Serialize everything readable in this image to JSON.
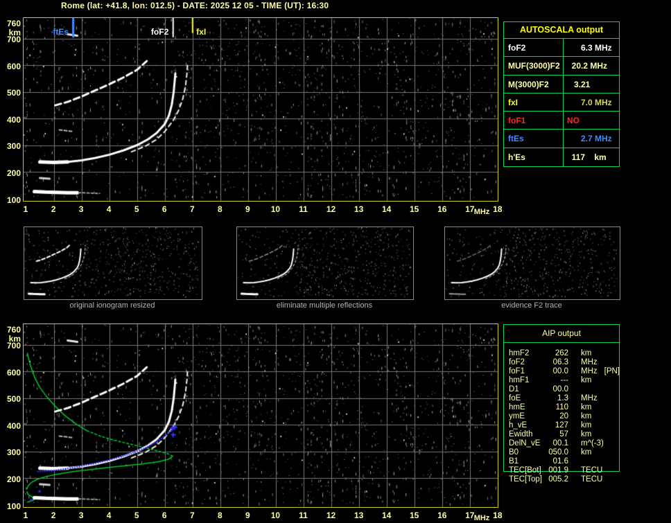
{
  "title": "Rome (lat: +41.8, lon: 012.5) - DATE: 2025 12 05 - TIME (UT): 16:30",
  "colors": {
    "background": "#000000",
    "title_text": "#ffffa8",
    "axis_text": "#ffffa4",
    "plot_border": "#cfcf00",
    "grid": "#787878",
    "table_border": "#00d957",
    "autoscala_header": "#ffff00",
    "red": "#ff2525",
    "blue": "#418cff",
    "fitted_blue": "#3333ff",
    "profile_green": "#00c830",
    "thumb_border": "#8a8a8a",
    "caption_gray": "#b4b4b4"
  },
  "autoscala": {
    "title": "AUTOSCALA output",
    "rows": [
      {
        "label": "foF2",
        "value": "      6.3 MHz",
        "labelColor": "#ffffff",
        "valueColor": "#ffffff"
      },
      {
        "label": "MUF(3000)F2",
        "value": "  20.2 MHz",
        "labelColor": "#ffffa4",
        "valueColor": "#ffffa4"
      },
      {
        "label": "M(3000)F2",
        "value": "   3.21",
        "labelColor": "#ffffa4",
        "valueColor": "#ffffa4"
      },
      {
        "label": "fxI",
        "value": "      7.0 MHz",
        "labelColor": "#ffff00",
        "valueColor": "#d9d44e"
      },
      {
        "label": "foF1",
        "value": "NO",
        "labelColor": "#ff2525",
        "valueColor": "#ff2525"
      },
      {
        "label": "ftEs",
        "value": "      2.7 MHz",
        "labelColor": "#418cff",
        "valueColor": "#418cff"
      },
      {
        "label": "h'Es",
        "value": "  117    km",
        "labelColor": "#ffffa4",
        "valueColor": "#ffffa4"
      }
    ]
  },
  "aip": {
    "title": "AIP output",
    "rows": [
      {
        "label": "hmF2",
        "value": "262",
        "unit": "km",
        "extra": ""
      },
      {
        "label": "foF2",
        "value": "06.3",
        "unit": "MHz",
        "extra": ""
      },
      {
        "label": "foF1",
        "value": "00.0",
        "unit": "MHz",
        "extra": "[PN]"
      },
      {
        "label": "hmF1",
        "value": "---",
        "unit": "km",
        "extra": ""
      },
      {
        "label": "D1",
        "value": "00.0",
        "unit": "",
        "extra": ""
      },
      {
        "label": "foE",
        "value": "1.3",
        "unit": "MHz",
        "extra": ""
      },
      {
        "label": "hmE",
        "value": "110",
        "unit": "km",
        "extra": ""
      },
      {
        "label": "ymE",
        "value": "20",
        "unit": "km",
        "extra": ""
      },
      {
        "label": "h_vE",
        "value": "127",
        "unit": "km",
        "extra": ""
      },
      {
        "label": "Ewidth",
        "value": "57",
        "unit": "km",
        "extra": ""
      },
      {
        "label": "DelN_vE",
        "value": "00.1",
        "unit": "m^(-3)",
        "extra": ""
      },
      {
        "label": "B0",
        "value": "050.0",
        "unit": "km",
        "extra": ""
      },
      {
        "label": "B1",
        "value": "01.6",
        "unit": "",
        "extra": ""
      },
      {
        "label": "TEC[Bot]",
        "value": "001.9",
        "unit": "TECU",
        "extra": ""
      },
      {
        "label": "TEC[Top]",
        "value": "005.2",
        "unit": "TECU",
        "extra": ""
      }
    ]
  },
  "thumbnails": [
    {
      "caption": "original ionogram resized"
    },
    {
      "caption": "eliminate multiple reflections"
    },
    {
      "caption": "evidence F2 trace"
    }
  ],
  "chart_data": {
    "type": "scatter",
    "xlabel": "MHz",
    "ylabel": "km",
    "xlim": [
      1,
      18
    ],
    "ylim": [
      100,
      765
    ],
    "grid": true,
    "xticks": [
      1,
      2,
      3,
      4,
      5,
      6,
      7,
      8,
      9,
      10,
      11,
      12,
      13,
      14,
      15,
      16,
      17,
      18
    ],
    "yticks": [
      760,
      700,
      600,
      500,
      400,
      300,
      200,
      100
    ],
    "plots": [
      {
        "name": "autoscala-ionogram",
        "markers": [
          {
            "label": "ftEs",
            "f": 2.7,
            "color": "#418cff",
            "side": "left",
            "len": 27,
            "lw": 3
          },
          {
            "label": "foF2",
            "f": 6.3,
            "color": "#ffffff",
            "side": "left",
            "len": 27,
            "lw": 2
          },
          {
            "label": "fxI",
            "f": 7.0,
            "color": "#ffff00",
            "side": "right",
            "len": 21,
            "lw": 2
          }
        ]
      },
      {
        "name": "aip-ionogram",
        "markers": [],
        "fitted_trace": {
          "color": "#3333ff",
          "points": [
            [
              1.4,
              228
            ],
            [
              1.9,
              231
            ],
            [
              2.4,
              238
            ],
            [
              2.9,
              247
            ],
            [
              3.4,
              257
            ],
            [
              3.9,
              269
            ],
            [
              4.4,
              283
            ],
            [
              4.9,
              301
            ],
            [
              5.3,
              318
            ],
            [
              5.7,
              341
            ],
            [
              6.0,
              363
            ],
            [
              6.2,
              381
            ],
            [
              6.3,
              393
            ]
          ],
          "end_markers": [
            [
              6.3,
              363
            ],
            [
              6.27,
              388
            ],
            [
              6.35,
              391
            ]
          ],
          "e_dots": [
            [
              1.45,
              155
            ],
            [
              1.15,
              122
            ]
          ]
        },
        "density_profile": {
          "color": "#00c830",
          "topside": [
            [
              1.05,
              668
            ],
            [
              1.15,
              625
            ],
            [
              1.3,
              580
            ],
            [
              1.5,
              540
            ],
            [
              1.75,
              505
            ],
            [
              2.05,
              470
            ],
            [
              2.4,
              435
            ],
            [
              2.8,
              403
            ],
            [
              3.2,
              378
            ]
          ],
          "mid_dashed": [
            [
              3.2,
              378
            ],
            [
              3.7,
              357
            ],
            [
              4.2,
              342
            ],
            [
              4.8,
              327
            ],
            [
              5.3,
              314
            ],
            [
              5.8,
              301
            ],
            [
              6.1,
              292
            ],
            [
              6.28,
              283
            ]
          ],
          "bottomside": [
            [
              6.28,
              283
            ],
            [
              6.15,
              272
            ],
            [
              5.8,
              263
            ],
            [
              5.2,
              254
            ],
            [
              4.4,
              245
            ],
            [
              3.5,
              235
            ],
            [
              2.7,
              225
            ],
            [
              2.1,
              215
            ],
            [
              1.7,
              206
            ],
            [
              1.4,
              196
            ],
            [
              1.2,
              185
            ],
            [
              1.08,
              172
            ],
            [
              1.03,
              160
            ]
          ],
          "e_region": [
            [
              1.03,
              148
            ],
            [
              1.1,
              138
            ],
            [
              1.25,
              128
            ],
            [
              1.32,
              122
            ],
            [
              1.2,
              115
            ],
            [
              1.05,
              111
            ]
          ]
        }
      }
    ],
    "echo_traces": {
      "es_main": {
        "points": [
          [
            1.3,
            127
          ],
          [
            1.7,
            125
          ],
          [
            2.1,
            124
          ],
          [
            2.5,
            123
          ],
          [
            2.85,
            123
          ]
        ],
        "width": 5,
        "style": "solid",
        "color": "#ffffff"
      },
      "es_tail": {
        "points": [
          [
            2.9,
            123
          ],
          [
            3.4,
            121
          ],
          [
            3.65,
            120
          ]
        ],
        "width": 2,
        "style": "dash",
        "color": "#9a9a9a"
      },
      "f2_ordinary": {
        "points": [
          [
            1.5,
            238
          ],
          [
            2.0,
            236
          ],
          [
            2.5,
            238
          ],
          [
            3.0,
            244
          ],
          [
            3.5,
            253
          ],
          [
            4.0,
            265
          ],
          [
            4.5,
            281
          ],
          [
            5.0,
            301
          ],
          [
            5.4,
            323
          ],
          [
            5.7,
            346
          ],
          [
            6.0,
            380
          ],
          [
            6.15,
            412
          ],
          [
            6.25,
            452
          ],
          [
            6.32,
            500
          ],
          [
            6.36,
            545
          ],
          [
            6.38,
            570
          ]
        ],
        "width": 3,
        "style": "solid",
        "color": "#ffffff"
      },
      "f2_extraordinary": {
        "points": [
          [
            4.8,
            276
          ],
          [
            5.3,
            297
          ],
          [
            5.7,
            322
          ],
          [
            6.0,
            352
          ],
          [
            6.3,
            393
          ],
          [
            6.5,
            432
          ],
          [
            6.65,
            475
          ],
          [
            6.75,
            525
          ],
          [
            6.8,
            572
          ],
          [
            6.82,
            608
          ]
        ],
        "width": 2,
        "style": "dash",
        "color": "#f0f0f0"
      },
      "second_hop": {
        "points": [
          [
            2.05,
            450
          ],
          [
            2.5,
            463
          ],
          [
            3.0,
            483
          ],
          [
            3.5,
            506
          ],
          [
            4.0,
            529
          ],
          [
            4.5,
            554
          ],
          [
            5.0,
            583
          ],
          [
            5.35,
            616
          ]
        ],
        "width": 3,
        "style": "dash",
        "color": "#ffffff"
      },
      "f1_fragment": {
        "points": [
          [
            2.2,
            358
          ],
          [
            2.7,
            352
          ]
        ],
        "width": 2,
        "style": "dash",
        "color": "#b8b8b8"
      },
      "top_fragment": {
        "points": [
          [
            2.5,
            716
          ],
          [
            2.85,
            711
          ]
        ],
        "width": 3,
        "style": "solid",
        "color": "#e8e8e8"
      },
      "left_fragment": {
        "points": [
          [
            1.5,
            178
          ],
          [
            1.85,
            175
          ]
        ],
        "width": 3,
        "style": "solid",
        "color": "#d0d0d0"
      }
    }
  }
}
